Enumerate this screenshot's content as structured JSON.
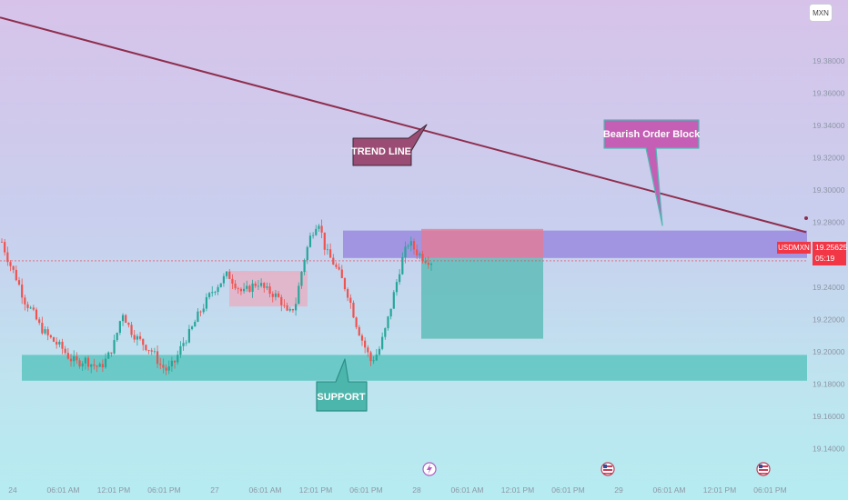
{
  "currency_button": {
    "label": "MXN"
  },
  "price_tag": {
    "symbol": "USDMXN",
    "price": "19.25625",
    "countdown": "05:19"
  },
  "colors": {
    "trendline": "#8e2e4e",
    "up_candle": "#26a69a",
    "down_candle": "#ef5350",
    "support_zone": "#5cc5bf",
    "order_block": "#9c8ee0",
    "short_stop_zone": "#e57a97",
    "short_target_zone": "#5fbdb9",
    "consolidation_box": "#f0a6b8"
  },
  "annotations": {
    "trend_line": "TREND LINE",
    "bearish_order_block": "Bearish Order Block",
    "support": "SUPPORT"
  },
  "event_icons": [
    "lightning-icon",
    "us-flag-icon",
    "us-flag-icon"
  ],
  "chart_data": {
    "type": "candlestick",
    "symbol": "USDMXN",
    "ylim": [
      19.125,
      19.415
    ],
    "y_ticks": [
      "19.38000",
      "19.36000",
      "19.34000",
      "19.32000",
      "19.30000",
      "19.28000",
      "19.26000",
      "19.24000",
      "19.22000",
      "19.20000",
      "19.18000",
      "19.16000",
      "19.14000"
    ],
    "x_ticks": [
      "24",
      "06:01 AM",
      "12:01 PM",
      "06:01 PM",
      "27",
      "06:01 AM",
      "12:01 PM",
      "06:01 PM",
      "28",
      "06:01 AM",
      "12:01 PM",
      "06:01 PM",
      "29",
      "06:01 AM",
      "12:01 PM",
      "06:01 PM"
    ],
    "last_price": 19.25625,
    "zones": {
      "order_block": [
        19.258,
        19.275
      ],
      "short_stop": [
        19.258,
        19.276
      ],
      "short_target": [
        19.208,
        19.258
      ],
      "support": [
        19.182,
        19.198
      ],
      "consolidation": [
        19.228,
        19.25
      ]
    },
    "trendline": {
      "from_price": 19.407,
      "to_price": 19.274
    },
    "price_path": [
      19.268,
      19.255,
      19.245,
      19.232,
      19.225,
      19.216,
      19.21,
      19.206,
      19.202,
      19.196,
      19.193,
      19.195,
      19.192,
      19.19,
      19.196,
      19.206,
      19.225,
      19.214,
      19.208,
      19.204,
      19.2,
      19.192,
      19.188,
      19.194,
      19.205,
      19.212,
      19.222,
      19.23,
      19.238,
      19.243,
      19.248,
      19.242,
      19.236,
      19.24,
      19.243,
      19.238,
      19.236,
      19.232,
      19.222,
      19.23,
      19.255,
      19.272,
      19.282,
      19.262,
      19.255,
      19.246,
      19.235,
      19.218,
      19.205,
      19.194,
      19.2,
      19.215,
      19.235,
      19.255,
      19.268,
      19.262,
      19.258,
      19.256
    ]
  }
}
